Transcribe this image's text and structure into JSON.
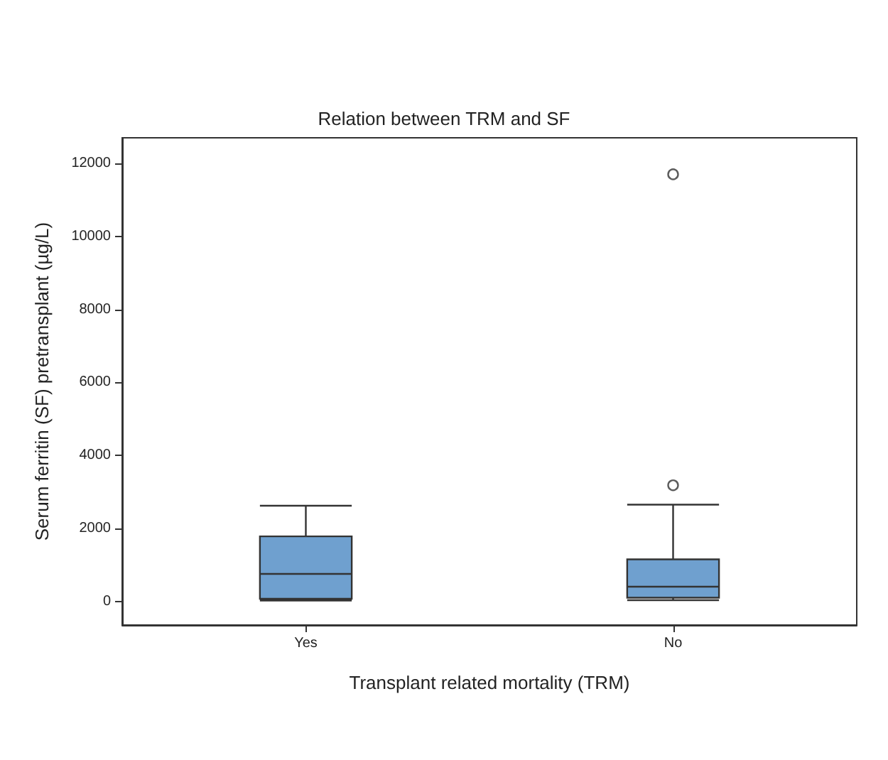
{
  "chart_data": {
    "type": "box",
    "title": "Relation between TRM and SF",
    "xlabel": "Transplant related mortality (TRM)",
    "ylabel": "Serum ferritin (SF) pretransplant (µg/L)",
    "categories": [
      "Yes",
      "No"
    ],
    "color": "#6fa0cf",
    "boxes": [
      {
        "low": 20,
        "q1": 70,
        "median": 750,
        "q3": 1780,
        "high": 2620
      },
      {
        "low": 30,
        "q1": 100,
        "median": 400,
        "q3": 1150,
        "high": 2650,
        "outliers": [
          3180,
          11700
        ]
      }
    ],
    "ylim": [
      -650,
      12700
    ],
    "yticks": [
      0,
      2000,
      4000,
      6000,
      8000,
      10000,
      12000
    ],
    "grid": false
  }
}
